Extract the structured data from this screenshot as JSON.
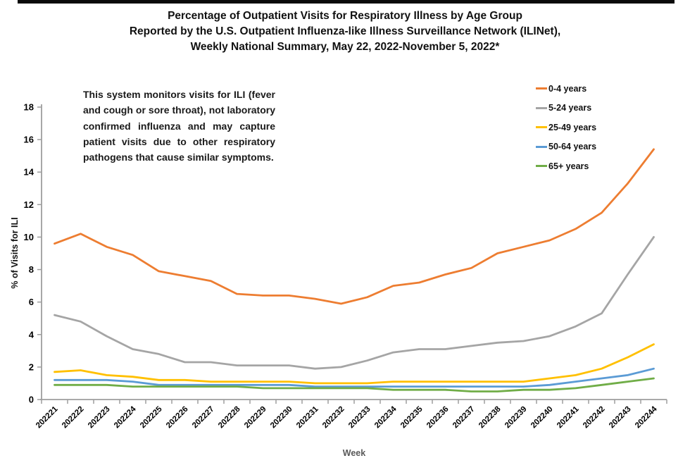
{
  "page": {
    "background": "#ffffff",
    "top_bar_color": "#0a0a0a",
    "axis_color": "#9e9e9e",
    "tick_label_color": "#000000",
    "x_axis_title_color": "#595959"
  },
  "title": {
    "line1": "Percentage of Outpatient Visits for Respiratory Illness by Age Group",
    "line2": "Reported by the U.S. Outpatient Influenza-like Illness Surveillance Network (ILINet),",
    "line3": "Weekly National Summary, May 22, 2022-November 5, 2022*"
  },
  "annotation": {
    "text": "This system monitors visits for ILI (fever and cough or sore throat), not laboratory confirmed influenza and may capture patient visits due to other respiratory pathogens that cause similar symptoms."
  },
  "chart_data": {
    "type": "line",
    "title": "Percentage of Outpatient Visits for Respiratory Illness by Age Group, ILINet, Weekly National Summary, May 22, 2022-November 5, 2022",
    "xlabel": "Week",
    "ylabel": "% of Visits for ILI",
    "ylim": [
      0,
      18
    ],
    "ytick_step": 2,
    "grid": false,
    "legend_position": "top-right",
    "categories": [
      "202221",
      "202222",
      "202223",
      "202224",
      "202225",
      "202226",
      "202227",
      "202228",
      "202229",
      "202230",
      "202231",
      "202232",
      "202233",
      "202234",
      "202235",
      "202236",
      "202237",
      "202238",
      "202239",
      "202240",
      "202241",
      "202242",
      "202243",
      "202244"
    ],
    "series": [
      {
        "name": "0-4 years",
        "color": "#ED7D31",
        "values": [
          9.6,
          10.2,
          9.4,
          8.9,
          7.9,
          7.6,
          7.3,
          6.5,
          6.4,
          6.4,
          6.2,
          5.9,
          6.3,
          7.0,
          7.2,
          7.7,
          8.1,
          9.0,
          9.4,
          9.8,
          10.5,
          11.5,
          13.3,
          15.4
        ]
      },
      {
        "name": "5-24 years",
        "color": "#A5A5A5",
        "values": [
          5.2,
          4.8,
          3.9,
          3.1,
          2.8,
          2.3,
          2.3,
          2.1,
          2.1,
          2.1,
          1.9,
          2.0,
          2.4,
          2.9,
          3.1,
          3.1,
          3.3,
          3.5,
          3.6,
          3.9,
          4.5,
          5.3,
          7.7,
          10.0
        ]
      },
      {
        "name": "25-49 years",
        "color": "#FFC000",
        "values": [
          1.7,
          1.8,
          1.5,
          1.4,
          1.2,
          1.2,
          1.1,
          1.1,
          1.1,
          1.1,
          1.0,
          1.0,
          1.0,
          1.1,
          1.1,
          1.1,
          1.1,
          1.1,
          1.1,
          1.3,
          1.5,
          1.9,
          2.6,
          3.4
        ]
      },
      {
        "name": "50-64 years",
        "color": "#5B9BD5",
        "values": [
          1.2,
          1.2,
          1.2,
          1.1,
          0.9,
          0.9,
          0.9,
          0.9,
          0.9,
          0.9,
          0.8,
          0.8,
          0.8,
          0.8,
          0.8,
          0.8,
          0.8,
          0.8,
          0.8,
          0.9,
          1.1,
          1.3,
          1.5,
          1.9
        ]
      },
      {
        "name": "65+ years",
        "color": "#70AD47",
        "values": [
          0.9,
          0.9,
          0.9,
          0.8,
          0.8,
          0.8,
          0.8,
          0.8,
          0.7,
          0.7,
          0.7,
          0.7,
          0.7,
          0.6,
          0.6,
          0.6,
          0.5,
          0.5,
          0.6,
          0.6,
          0.7,
          0.9,
          1.1,
          1.3
        ]
      }
    ]
  }
}
